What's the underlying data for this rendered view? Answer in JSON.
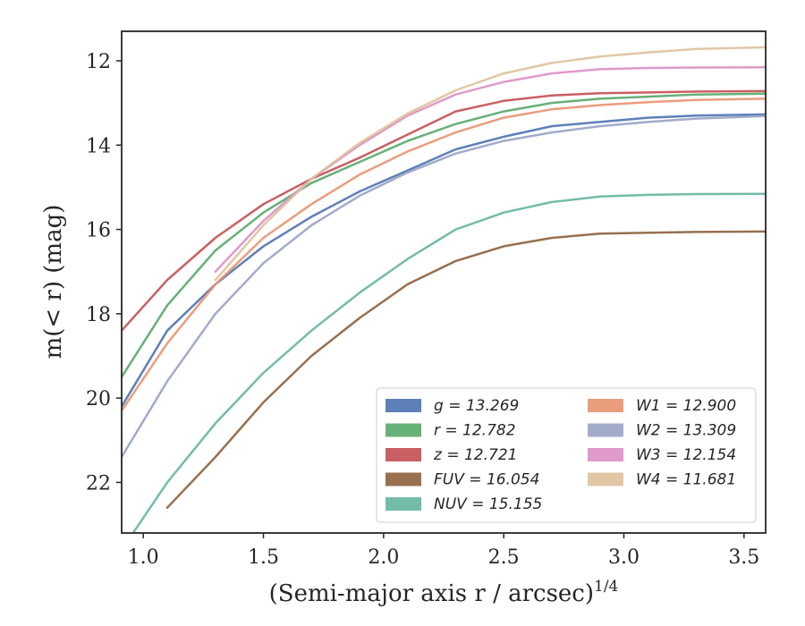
{
  "chart_data": {
    "type": "line",
    "xlabel": "(Semi-major axis r / arcsec)",
    "xlabel_sup": "1/4",
    "ylabel": "m(< r) (mag)",
    "xlim": [
      0.91,
      3.59
    ],
    "ylim": [
      23.2,
      11.3
    ],
    "y_inverted": true,
    "xticks": [
      "1.0",
      "1.5",
      "2.0",
      "2.5",
      "3.0",
      "3.5"
    ],
    "yticks": [
      "12",
      "14",
      "16",
      "18",
      "20",
      "22"
    ],
    "grid": false,
    "legend_position": "lower-right",
    "legend_columns": 2,
    "series": [
      {
        "name": "g = 13.269",
        "color": "#4c72b0",
        "x": [
          0.91,
          1.1,
          1.3,
          1.5,
          1.7,
          1.9,
          2.1,
          2.3,
          2.5,
          2.7,
          2.9,
          3.1,
          3.3,
          3.59
        ],
        "y": [
          20.2,
          18.4,
          17.3,
          16.4,
          15.7,
          15.1,
          14.6,
          14.1,
          13.8,
          13.55,
          13.45,
          13.35,
          13.3,
          13.27
        ]
      },
      {
        "name": "r = 12.782",
        "color": "#55a868",
        "x": [
          0.91,
          1.1,
          1.3,
          1.5,
          1.7,
          1.9,
          2.1,
          2.3,
          2.5,
          2.7,
          2.9,
          3.1,
          3.3,
          3.59
        ],
        "y": [
          19.5,
          17.8,
          16.5,
          15.6,
          14.9,
          14.4,
          13.9,
          13.5,
          13.2,
          13.0,
          12.9,
          12.85,
          12.8,
          12.78
        ]
      },
      {
        "name": "z = 12.721",
        "color": "#c44e52",
        "x": [
          0.91,
          1.1,
          1.3,
          1.5,
          1.7,
          1.9,
          2.1,
          2.3,
          2.5,
          2.7,
          2.9,
          3.1,
          3.3,
          3.59
        ],
        "y": [
          18.4,
          17.2,
          16.2,
          15.4,
          14.8,
          14.3,
          13.75,
          13.2,
          12.95,
          12.82,
          12.77,
          12.75,
          12.73,
          12.72
        ]
      },
      {
        "name": "FUV = 16.054",
        "color": "#8c613c",
        "x": [
          1.1,
          1.3,
          1.5,
          1.7,
          1.9,
          2.1,
          2.3,
          2.5,
          2.7,
          2.9,
          3.1,
          3.3,
          3.59
        ],
        "y": [
          22.6,
          21.4,
          20.1,
          19.0,
          18.1,
          17.3,
          16.75,
          16.4,
          16.2,
          16.1,
          16.08,
          16.06,
          16.05
        ]
      },
      {
        "name": "NUV = 15.155",
        "color": "#64b5a0",
        "x": [
          0.91,
          1.1,
          1.3,
          1.5,
          1.7,
          1.9,
          2.1,
          2.3,
          2.5,
          2.7,
          2.9,
          3.1,
          3.3,
          3.59
        ],
        "y": [
          23.6,
          22.0,
          20.6,
          19.4,
          18.4,
          17.5,
          16.7,
          16.0,
          15.6,
          15.35,
          15.22,
          15.18,
          15.16,
          15.155
        ]
      },
      {
        "name": "W1 = 12.900",
        "color": "#e8926f",
        "x": [
          0.91,
          1.1,
          1.3,
          1.5,
          1.7,
          1.9,
          2.1,
          2.3,
          2.5,
          2.7,
          2.9,
          3.1,
          3.3,
          3.59
        ],
        "y": [
          20.3,
          18.7,
          17.3,
          16.2,
          15.4,
          14.7,
          14.15,
          13.7,
          13.35,
          13.15,
          13.05,
          12.98,
          12.93,
          12.9
        ]
      },
      {
        "name": "W2 = 13.309",
        "color": "#97a3c4",
        "x": [
          0.91,
          1.1,
          1.3,
          1.5,
          1.7,
          1.9,
          2.1,
          2.3,
          2.5,
          2.7,
          2.9,
          3.1,
          3.3,
          3.59
        ],
        "y": [
          21.4,
          19.6,
          18.0,
          16.8,
          15.9,
          15.2,
          14.65,
          14.2,
          13.9,
          13.7,
          13.55,
          13.45,
          13.37,
          13.31
        ]
      },
      {
        "name": "W3 = 12.154",
        "color": "#dc8fc4",
        "x": [
          1.3,
          1.5,
          1.7,
          1.9,
          2.1,
          2.3,
          2.5,
          2.7,
          2.9,
          3.1,
          3.3,
          3.59
        ],
        "y": [
          17.0,
          15.8,
          14.8,
          14.0,
          13.3,
          12.8,
          12.5,
          12.3,
          12.2,
          12.17,
          12.16,
          12.154
        ]
      },
      {
        "name": "W4 = 11.681",
        "color": "#dec19b",
        "x": [
          1.3,
          1.5,
          1.7,
          1.9,
          2.1,
          2.3,
          2.5,
          2.7,
          2.9,
          3.1,
          3.3,
          3.59
        ],
        "y": [
          17.2,
          15.9,
          14.8,
          13.95,
          13.25,
          12.7,
          12.3,
          12.05,
          11.9,
          11.8,
          11.72,
          11.68
        ]
      }
    ]
  }
}
